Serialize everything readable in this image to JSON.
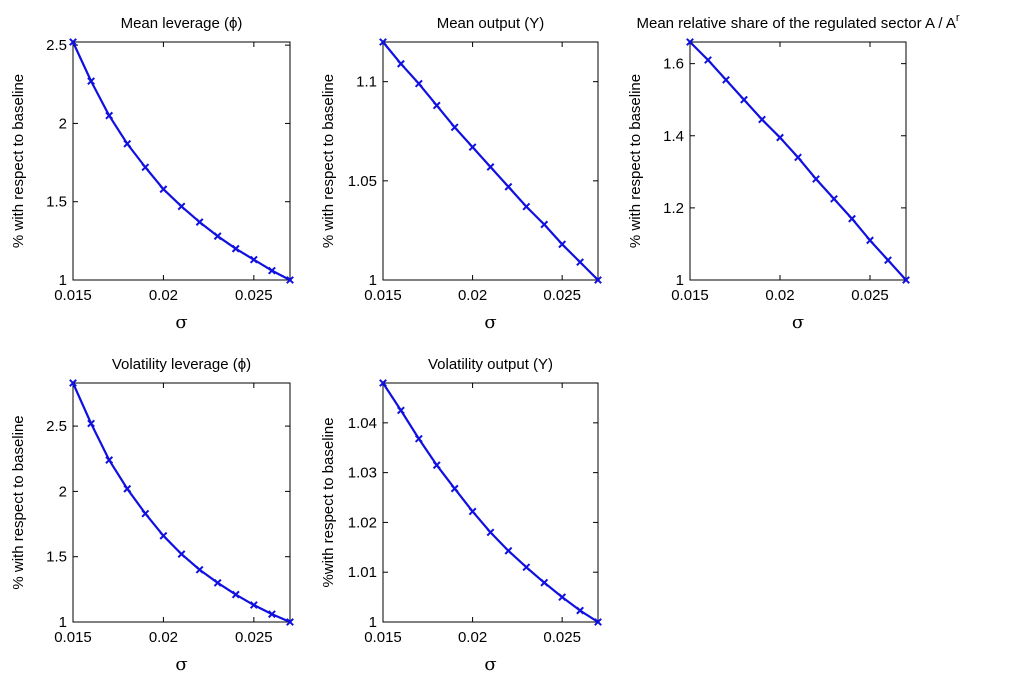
{
  "colors": {
    "series": "#1010e0",
    "axes": "#000000",
    "background": "#ffffff"
  },
  "chart_data": [
    {
      "type": "line",
      "title": "Mean leverage (ϕ)",
      "xlabel": "σ",
      "ylabel": "% with respect to baseline",
      "xlim": [
        0.015,
        0.027
      ],
      "ylim": [
        1,
        2.52
      ],
      "xticks": [
        0.015,
        0.02,
        0.025
      ],
      "xtick_labels": [
        "0.015",
        "0.02",
        "0.025"
      ],
      "yticks": [
        1,
        1.5,
        2,
        2.5
      ],
      "ytick_labels": [
        "1",
        "1.5",
        "2",
        "2.5"
      ],
      "grid": false,
      "x": [
        0.015,
        0.016,
        0.017,
        0.018,
        0.019,
        0.02,
        0.021,
        0.022,
        0.023,
        0.024,
        0.025,
        0.026,
        0.027
      ],
      "y": [
        2.52,
        2.27,
        2.05,
        1.87,
        1.72,
        1.58,
        1.47,
        1.37,
        1.28,
        1.2,
        1.13,
        1.06,
        1.0
      ]
    },
    {
      "type": "line",
      "title": "Mean output (Y)",
      "xlabel": "σ",
      "ylabel": "% with respect to baseline",
      "xlim": [
        0.015,
        0.027
      ],
      "ylim": [
        1,
        1.12
      ],
      "xticks": [
        0.015,
        0.02,
        0.025
      ],
      "xtick_labels": [
        "0.015",
        "0.02",
        "0.025"
      ],
      "yticks": [
        1,
        1.05,
        1.1
      ],
      "ytick_labels": [
        "1",
        "1.05",
        "1.1"
      ],
      "grid": false,
      "x": [
        0.015,
        0.016,
        0.017,
        0.018,
        0.019,
        0.02,
        0.021,
        0.022,
        0.023,
        0.024,
        0.025,
        0.026,
        0.027
      ],
      "y": [
        1.12,
        1.109,
        1.099,
        1.088,
        1.077,
        1.067,
        1.057,
        1.047,
        1.037,
        1.028,
        1.018,
        1.009,
        1.0
      ]
    },
    {
      "type": "line",
      "title": "Mean relative share of the regulated sector A / A",
      "title_superscript": "r",
      "xlabel": "σ",
      "ylabel": "% with respect to baseline",
      "xlim": [
        0.015,
        0.027
      ],
      "ylim": [
        1,
        1.66
      ],
      "xticks": [
        0.015,
        0.02,
        0.025
      ],
      "xtick_labels": [
        "0.015",
        "0.02",
        "0.025"
      ],
      "yticks": [
        1,
        1.2,
        1.4,
        1.6
      ],
      "ytick_labels": [
        "1",
        "1.2",
        "1.4",
        "1.6"
      ],
      "grid": false,
      "x": [
        0.015,
        0.016,
        0.017,
        0.018,
        0.019,
        0.02,
        0.021,
        0.022,
        0.023,
        0.024,
        0.025,
        0.026,
        0.027
      ],
      "y": [
        1.66,
        1.61,
        1.555,
        1.5,
        1.445,
        1.395,
        1.34,
        1.28,
        1.225,
        1.17,
        1.11,
        1.055,
        1.0
      ]
    },
    {
      "type": "line",
      "title": "Volatility leverage (ϕ)",
      "xlabel": "σ",
      "ylabel": "% with respect to baseline",
      "xlim": [
        0.015,
        0.027
      ],
      "ylim": [
        1,
        2.83
      ],
      "xticks": [
        0.015,
        0.02,
        0.025
      ],
      "xtick_labels": [
        "0.015",
        "0.02",
        "0.025"
      ],
      "yticks": [
        1,
        1.5,
        2,
        2.5
      ],
      "ytick_labels": [
        "1",
        "1.5",
        "2",
        "2.5"
      ],
      "grid": false,
      "x": [
        0.015,
        0.016,
        0.017,
        0.018,
        0.019,
        0.02,
        0.021,
        0.022,
        0.023,
        0.024,
        0.025,
        0.026,
        0.027
      ],
      "y": [
        2.83,
        2.52,
        2.24,
        2.02,
        1.83,
        1.66,
        1.52,
        1.4,
        1.3,
        1.21,
        1.13,
        1.06,
        1.0
      ]
    },
    {
      "type": "line",
      "title": "Volatility output (Y)",
      "xlabel": "σ",
      "ylabel": "%with respect to baseline",
      "xlim": [
        0.015,
        0.027
      ],
      "ylim": [
        1,
        1.048
      ],
      "xticks": [
        0.015,
        0.02,
        0.025
      ],
      "xtick_labels": [
        "0.015",
        "0.02",
        "0.025"
      ],
      "yticks": [
        1,
        1.01,
        1.02,
        1.03,
        1.04
      ],
      "ytick_labels": [
        "1",
        "1.01",
        "1.02",
        "1.03",
        "1.04"
      ],
      "grid": false,
      "x": [
        0.015,
        0.016,
        0.017,
        0.018,
        0.019,
        0.02,
        0.021,
        0.022,
        0.023,
        0.024,
        0.025,
        0.026,
        0.027
      ],
      "y": [
        1.048,
        1.0425,
        1.0368,
        1.0315,
        1.0268,
        1.0222,
        1.018,
        1.0143,
        1.011,
        1.0079,
        1.005,
        1.0023,
        1.0
      ]
    }
  ]
}
